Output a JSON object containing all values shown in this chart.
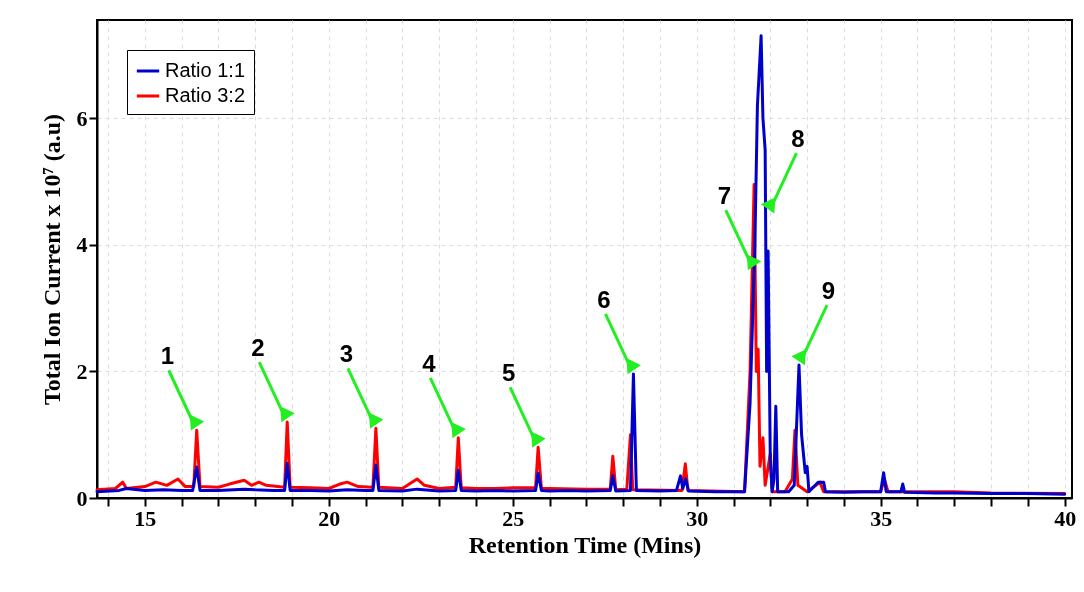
{
  "chart_data": {
    "type": "line",
    "xlabel": "Retention Time (Mins)",
    "ylabel": "Total Ion Current x 10⁷ (a.u)",
    "xlim": [
      13.7,
      40.2
    ],
    "ylim": [
      0,
      7.55
    ],
    "xticks": [
      {
        "value": 14,
        "label": null
      },
      15,
      {
        "value": 16,
        "label": null
      },
      {
        "value": 17,
        "label": null
      },
      {
        "value": 18,
        "label": null
      },
      {
        "value": 19,
        "label": null
      },
      20,
      {
        "value": 21,
        "label": null
      },
      {
        "value": 22,
        "label": null
      },
      {
        "value": 23,
        "label": null
      },
      {
        "value": 24,
        "label": null
      },
      25,
      {
        "value": 26,
        "label": null
      },
      {
        "value": 27,
        "label": null
      },
      {
        "value": 28,
        "label": null
      },
      {
        "value": 29,
        "label": null
      },
      30,
      {
        "value": 31,
        "label": null
      },
      {
        "value": 32,
        "label": null
      },
      {
        "value": 33,
        "label": null
      },
      {
        "value": 34,
        "label": null
      },
      35,
      {
        "value": 36,
        "label": null
      },
      {
        "value": 37,
        "label": null
      },
      {
        "value": 38,
        "label": null
      },
      {
        "value": 39,
        "label": null
      },
      40
    ],
    "yticks": [
      0,
      2,
      4,
      6
    ],
    "grid": true,
    "legend": "top left",
    "marker": "none",
    "line_style": "solid",
    "series": [
      {
        "name": "Ratio 1:1",
        "color": "#0000cc",
        "x": [
          13.7,
          14.3,
          14.5,
          15,
          15.5,
          16,
          16.3,
          16.41,
          16.5,
          17,
          17.7,
          18,
          18.5,
          18.8,
          18.87,
          18.95,
          19.5,
          20,
          20.5,
          21,
          21.2,
          21.28,
          21.36,
          22,
          22.4,
          23,
          23.45,
          23.52,
          23.6,
          24,
          24.5,
          25,
          25.62,
          25.69,
          25.78,
          26,
          26.5,
          27,
          27.65,
          27.72,
          27.8,
          28.2,
          28.28,
          28.36,
          29,
          29.45,
          29.56,
          29.62,
          29.7,
          29.78,
          30.5,
          31,
          31.3,
          31.45,
          31.58,
          31.65,
          31.75,
          31.8,
          31.86,
          31.9,
          31.94,
          32.0,
          32.05,
          32.1,
          32.15,
          32.2,
          32.5,
          32.65,
          32.78,
          32.85,
          32.9,
          32.95,
          33.0,
          33.05,
          33.3,
          33.45,
          33.5,
          34,
          34.5,
          35,
          35.08,
          35.15,
          35.55,
          35.6,
          35.65,
          36.5,
          37,
          38,
          39,
          40
        ],
        "values": [
          0.1,
          0.12,
          0.15,
          0.12,
          0.13,
          0.12,
          0.12,
          0.49,
          0.12,
          0.12,
          0.14,
          0.13,
          0.12,
          0.12,
          0.55,
          0.12,
          0.12,
          0.11,
          0.13,
          0.12,
          0.12,
          0.52,
          0.12,
          0.11,
          0.14,
          0.11,
          0.12,
          0.44,
          0.12,
          0.11,
          0.12,
          0.11,
          0.12,
          0.39,
          0.12,
          0.11,
          0.12,
          0.11,
          0.12,
          0.35,
          0.11,
          0.12,
          1.96,
          0.12,
          0.11,
          0.12,
          0.35,
          0.15,
          0.3,
          0.11,
          0.1,
          0.1,
          0.1,
          1.5,
          4.0,
          6.2,
          7.3,
          6.0,
          5.5,
          2.0,
          3.9,
          0.6,
          0.1,
          0.3,
          1.45,
          0.1,
          0.1,
          0.2,
          2.1,
          1.0,
          0.7,
          0.4,
          0.5,
          0.1,
          0.25,
          0.25,
          0.1,
          0.09,
          0.1,
          0.1,
          0.4,
          0.1,
          0.1,
          0.22,
          0.09,
          0.08,
          0.08,
          0.07,
          0.07,
          0.06
        ]
      },
      {
        "name": "Ratio 3:2",
        "color": "#ff0000",
        "x": [
          13.7,
          14.2,
          14.4,
          14.5,
          15,
          15.3,
          15.6,
          15.9,
          16.1,
          16.33,
          16.41,
          16.5,
          17,
          17.3,
          17.7,
          17.9,
          18.1,
          18.3,
          18.8,
          18.87,
          18.95,
          19.5,
          20,
          20.3,
          20.5,
          20.8,
          21.2,
          21.28,
          21.36,
          22,
          22.4,
          22.6,
          23,
          23.45,
          23.52,
          23.6,
          24,
          24.5,
          25,
          25.62,
          25.69,
          25.78,
          26,
          27,
          27.65,
          27.72,
          27.8,
          28.1,
          28.2,
          28.26,
          29.6,
          29.69,
          29.76,
          31.3,
          31.45,
          31.56,
          31.62,
          31.67,
          31.72,
          31.8,
          31.86,
          32.0,
          32.05,
          32.4,
          32.6,
          32.67,
          32.75,
          33.0,
          33.35,
          33.45,
          35,
          35.1,
          35.2,
          36,
          37,
          38,
          40
        ],
        "values": [
          0.13,
          0.15,
          0.25,
          0.15,
          0.18,
          0.25,
          0.2,
          0.3,
          0.18,
          0.18,
          1.07,
          0.18,
          0.17,
          0.22,
          0.28,
          0.2,
          0.25,
          0.2,
          0.17,
          1.2,
          0.17,
          0.16,
          0.15,
          0.22,
          0.25,
          0.18,
          0.17,
          1.1,
          0.17,
          0.15,
          0.3,
          0.2,
          0.15,
          0.17,
          0.95,
          0.16,
          0.15,
          0.15,
          0.16,
          0.16,
          0.8,
          0.15,
          0.15,
          0.14,
          0.14,
          0.66,
          0.13,
          0.14,
          1.0,
          0.13,
          0.12,
          0.54,
          0.12,
          0.1,
          2.0,
          4.95,
          2.0,
          2.35,
          0.5,
          0.95,
          0.2,
          0.7,
          0.1,
          0.1,
          0.3,
          1.07,
          0.2,
          0.1,
          0.25,
          0.1,
          0.1,
          0.3,
          0.1,
          0.1,
          0.1,
          0.08,
          0.07
        ]
      }
    ],
    "annotations": [
      {
        "text": "1",
        "x": 16.41,
        "y": 1.07
      },
      {
        "text": "2",
        "x": 18.87,
        "y": 1.2
      },
      {
        "text": "3",
        "x": 21.28,
        "y": 1.1
      },
      {
        "text": "4",
        "x": 23.52,
        "y": 0.95
      },
      {
        "text": "5",
        "x": 25.69,
        "y": 0.8
      },
      {
        "text": "6",
        "x": 28.28,
        "y": 1.96
      },
      {
        "text": "7",
        "x": 31.55,
        "y": 3.6
      },
      {
        "text": "8",
        "x": 31.95,
        "y": 4.5
      },
      {
        "text": "9",
        "x": 32.78,
        "y": 2.1
      }
    ]
  }
}
